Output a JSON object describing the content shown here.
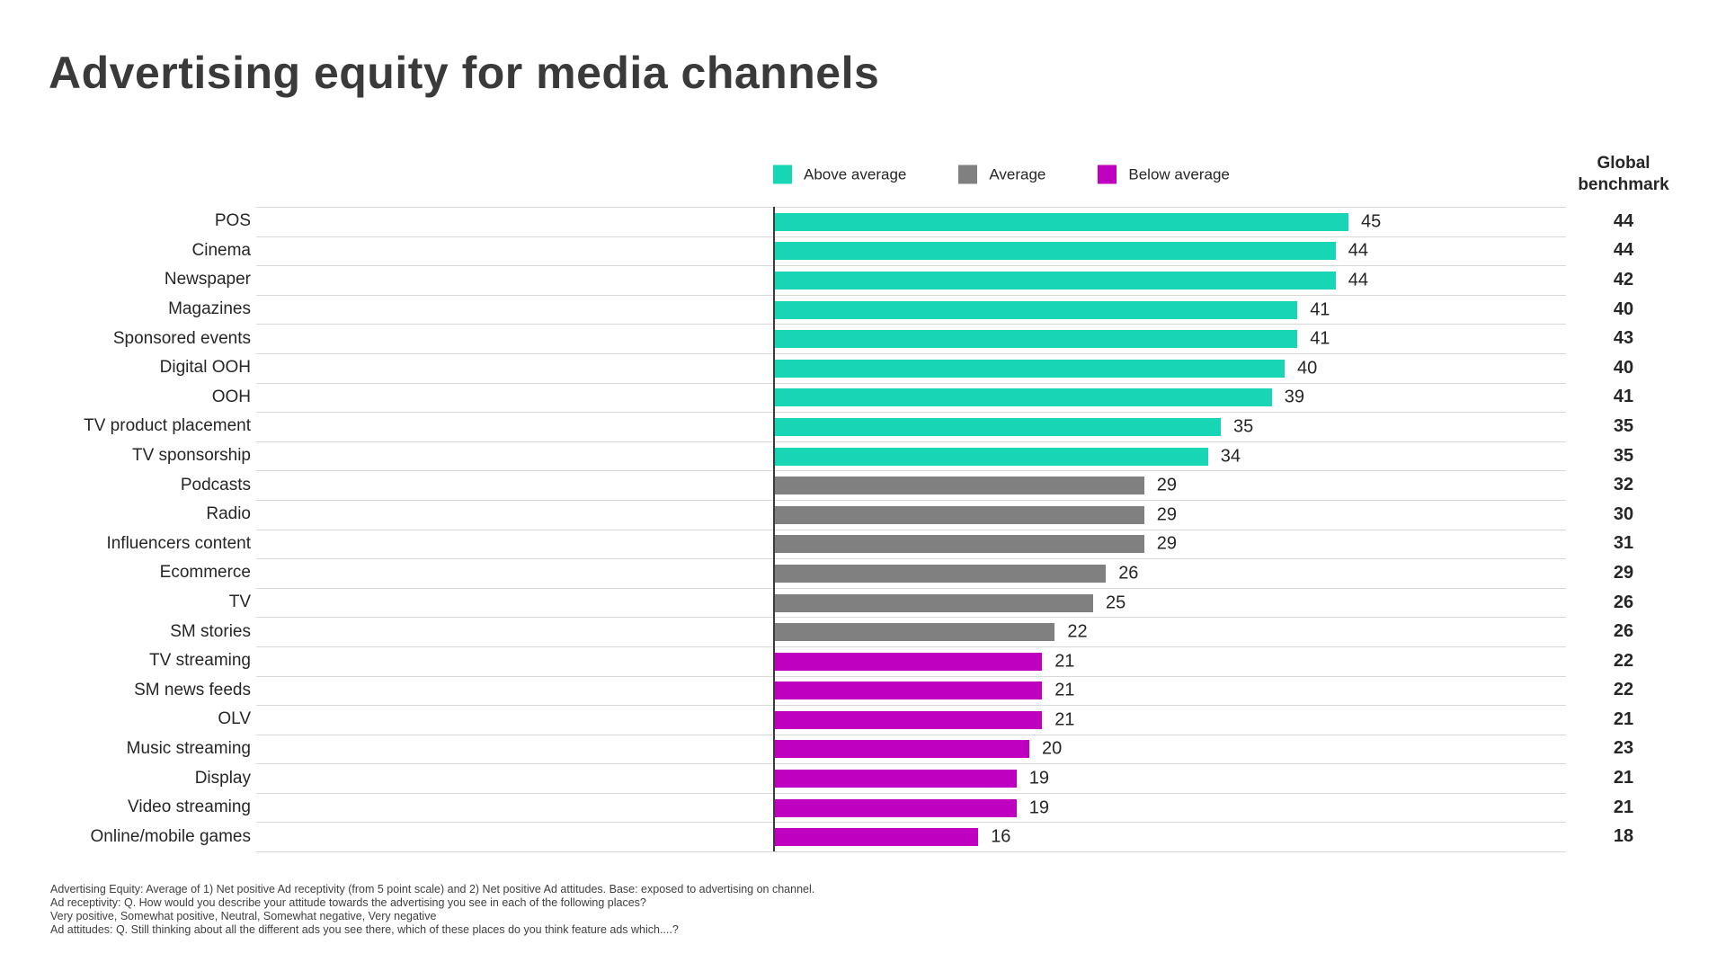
{
  "title": "Advertising equity for media channels",
  "benchmark_header": "Global benchmark",
  "legend": [
    {
      "key": "above",
      "label": "Above average",
      "color": "#17d5b5"
    },
    {
      "key": "average",
      "label": "Average",
      "color": "#808080"
    },
    {
      "key": "below",
      "label": "Below average",
      "color": "#c000c0"
    }
  ],
  "colors": {
    "above_average": "#17d5b5",
    "average": "#808080",
    "below_average": "#c000c0",
    "row_line": "#d8d8d8",
    "axis_line": "#3c3c3c",
    "text": "#262626"
  },
  "chart_data": {
    "type": "bar",
    "orientation": "horizontal",
    "xlim": [
      0,
      50
    ],
    "legend_position": "top",
    "value_labels": "end-of-bar",
    "benchmark_column_label": "Global benchmark",
    "rows": [
      {
        "label": "POS",
        "value": 45,
        "benchmark": 44,
        "group": "above"
      },
      {
        "label": "Cinema",
        "value": 44,
        "benchmark": 44,
        "group": "above"
      },
      {
        "label": "Newspaper",
        "value": 44,
        "benchmark": 42,
        "group": "above"
      },
      {
        "label": "Magazines",
        "value": 41,
        "benchmark": 40,
        "group": "above"
      },
      {
        "label": "Sponsored events",
        "value": 41,
        "benchmark": 43,
        "group": "above"
      },
      {
        "label": "Digital OOH",
        "value": 40,
        "benchmark": 40,
        "group": "above"
      },
      {
        "label": "OOH",
        "value": 39,
        "benchmark": 41,
        "group": "above"
      },
      {
        "label": "TV product placement",
        "value": 35,
        "benchmark": 35,
        "group": "above"
      },
      {
        "label": "TV sponsorship",
        "value": 34,
        "benchmark": 35,
        "group": "above"
      },
      {
        "label": "Podcasts",
        "value": 29,
        "benchmark": 32,
        "group": "average"
      },
      {
        "label": "Radio",
        "value": 29,
        "benchmark": 30,
        "group": "average"
      },
      {
        "label": "Influencers content",
        "value": 29,
        "benchmark": 31,
        "group": "average"
      },
      {
        "label": "Ecommerce",
        "value": 26,
        "benchmark": 29,
        "group": "average"
      },
      {
        "label": "TV",
        "value": 25,
        "benchmark": 26,
        "group": "average"
      },
      {
        "label": "SM stories",
        "value": 22,
        "benchmark": 26,
        "group": "average"
      },
      {
        "label": "TV streaming",
        "value": 21,
        "benchmark": 22,
        "group": "below"
      },
      {
        "label": "SM news feeds",
        "value": 21,
        "benchmark": 22,
        "group": "below"
      },
      {
        "label": "OLV",
        "value": 21,
        "benchmark": 21,
        "group": "below"
      },
      {
        "label": "Music streaming",
        "value": 20,
        "benchmark": 23,
        "group": "below"
      },
      {
        "label": "Display",
        "value": 19,
        "benchmark": 21,
        "group": "below"
      },
      {
        "label": "Video streaming",
        "value": 19,
        "benchmark": 21,
        "group": "below"
      },
      {
        "label": "Online/mobile games",
        "value": 16,
        "benchmark": 18,
        "group": "below"
      }
    ]
  },
  "footnotes": [
    "Advertising Equity: Average of 1) Net positive Ad receptivity (from 5 point scale) and 2) Net positive Ad attitudes. Base: exposed to advertising on channel.",
    "Ad receptivity: Q. How would you describe your attitude towards the advertising you see in each of the following places?",
    "Very positive, Somewhat positive, Neutral, Somewhat negative, Very negative",
    "Ad attitudes: Q. Still thinking about all the different ads you see there, which of these places do you think feature ads which....?"
  ]
}
